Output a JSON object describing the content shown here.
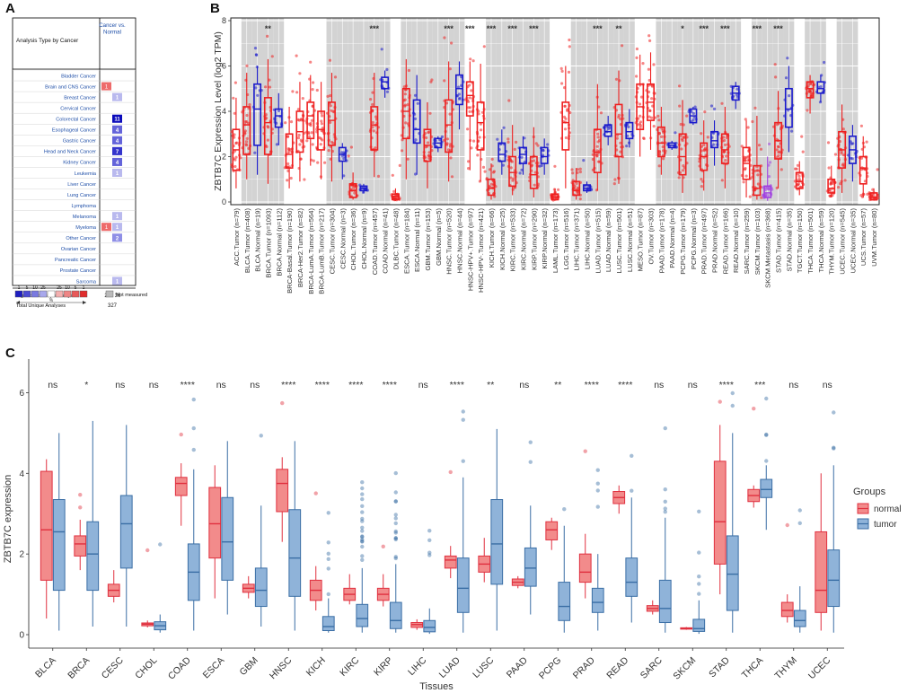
{
  "panels": {
    "a": "A",
    "b": "B",
    "c": "C"
  },
  "oncomine": {
    "header_left": "Analysis Type by Cancer",
    "header_right": "Cancer vs. Normal",
    "rows": [
      {
        "name": "Bladder Cancer",
        "red": "",
        "blue": ""
      },
      {
        "name": "Brain and CNS Cancer",
        "red": "1",
        "blue": ""
      },
      {
        "name": "Breast Cancer",
        "red": "",
        "blue": "1"
      },
      {
        "name": "Cervical Cancer",
        "red": "",
        "blue": ""
      },
      {
        "name": "Colorectal Cancer",
        "red": "",
        "blue": "11"
      },
      {
        "name": "Esophageal Cancer",
        "red": "",
        "blue": "4"
      },
      {
        "name": "Gastric Cancer",
        "red": "",
        "blue": "4"
      },
      {
        "name": "Head and Neck Cancer",
        "red": "",
        "blue": "7"
      },
      {
        "name": "Kidney Cancer",
        "red": "",
        "blue": "4"
      },
      {
        "name": "Leukemia",
        "red": "",
        "blue": "1"
      },
      {
        "name": "Liver Cancer",
        "red": "",
        "blue": ""
      },
      {
        "name": "Lung Cancer",
        "red": "",
        "blue": ""
      },
      {
        "name": "Lymphoma",
        "red": "",
        "blue": ""
      },
      {
        "name": "Melanoma",
        "red": "",
        "blue": "1"
      },
      {
        "name": "Myeloma",
        "red": "1",
        "blue": "1"
      },
      {
        "name": "Other Cancer",
        "red": "",
        "blue": "2"
      },
      {
        "name": "Ovarian Cancer",
        "red": "",
        "blue": ""
      },
      {
        "name": "Pancreatic Cancer",
        "red": "",
        "blue": ""
      },
      {
        "name": "Prostate Cancer",
        "red": "",
        "blue": ""
      },
      {
        "name": "Sarcoma",
        "red": "",
        "blue": "1"
      }
    ],
    "summary": [
      {
        "label": "Significant Unique Analyses",
        "red": "2",
        "blue": "36"
      },
      {
        "label": "Total Unique Analyses",
        "red": "327",
        "blue": ""
      }
    ],
    "legend_numbers": [
      "1",
      "5",
      "10",
      "25",
      "",
      "25",
      "10",
      "5",
      "1"
    ],
    "legend_percent": "%",
    "not_measured": "Not measured",
    "blue_colors": {
      "1": "#b9b9ee",
      "2": "#8f8fe6",
      "4": "#6464da",
      "7": "#3434cc",
      "11": "#0b0bbb"
    },
    "red_color": "#ee6b6b"
  },
  "chart_data": [
    {
      "type": "box",
      "panel": "B",
      "ylabel": "ZBTB7C Expression Level (log2 TPM)",
      "ylim": [
        0,
        8
      ],
      "yticks": [
        "0",
        "2",
        "4",
        "6",
        "8"
      ],
      "categories": [
        "ACC.Tumor (n=79)",
        "BLCA.Tumor (n=408)",
        "BLCA.Normal (n=19)",
        "BRCA.Tumor (n=1093)",
        "BRCA.Normal (n=112)",
        "BRCA-Basal.Tumor (n=190)",
        "BRCA-Her2.Tumor (n=82)",
        "BRCA-LumA.Tumor (n=564)",
        "BRCA-LumB.Tumor (n=217)",
        "CESC.Tumor (n=304)",
        "CESC.Normal (n=3)",
        "CHOL.Tumor (n=36)",
        "CHOL.Normal (n=9)",
        "COAD.Tumor (n=457)",
        "COAD.Normal (n=41)",
        "DLBC.Tumor (n=48)",
        "ESCA.Tumor (n=184)",
        "ESCA.Normal (n=11)",
        "GBM.Tumor (n=153)",
        "GBM.Normal (n=5)",
        "HNSC.Tumor (n=520)",
        "HNSC.Normal (n=44)",
        "HNSC-HPV+.Tumor (n=97)",
        "HNSC-HPV-.Tumor (n=421)",
        "KICH.Tumor (n=66)",
        "KICH.Normal (n=25)",
        "KIRC.Tumor (n=533)",
        "KIRC.Normal (n=72)",
        "KIRP.Tumor (n=290)",
        "KIRP.Normal (n=32)",
        "LAML.Tumor (n=173)",
        "LGG.Tumor (n=516)",
        "LIHC.Tumor (n=371)",
        "LIHC.Normal (n=50)",
        "LUAD.Tumor (n=515)",
        "LUAD.Normal (n=59)",
        "LUSC.Tumor (n=501)",
        "LUSC.Normal (n=51)",
        "MESO.Tumor (n=87)",
        "OV.Tumor (n=303)",
        "PAAD.Tumor (n=178)",
        "PAAD.Normal (n=4)",
        "PCPG.Tumor (n=179)",
        "PCPG.Normal (n=3)",
        "PRAD.Tumor (n=497)",
        "PRAD.Normal (n=52)",
        "READ.Tumor (n=166)",
        "READ.Normal (n=10)",
        "SARC.Tumor (n=259)",
        "SKCM.Tumor (n=103)",
        "SKCM.Metastasis (n=368)",
        "STAD.Tumor (n=415)",
        "STAD.Normal (n=35)",
        "TGCT.Tumor (n=150)",
        "THCA.Tumor (n=501)",
        "THCA.Normal (n=59)",
        "THYM.Tumor (n=120)",
        "UCEC.Tumor (n=545)",
        "UCEC.Normal (n=35)",
        "UCS.Tumor (n=57)",
        "UVM.Tumor (n=80)"
      ],
      "group": [
        "t",
        "t",
        "n",
        "t",
        "n",
        "t",
        "t",
        "t",
        "t",
        "t",
        "n",
        "t",
        "n",
        "t",
        "n",
        "t",
        "t",
        "n",
        "t",
        "n",
        "t",
        "n",
        "t",
        "t",
        "t",
        "n",
        "t",
        "n",
        "t",
        "n",
        "t",
        "t",
        "t",
        "n",
        "t",
        "n",
        "t",
        "n",
        "t",
        "t",
        "t",
        "n",
        "t",
        "n",
        "t",
        "n",
        "t",
        "n",
        "t",
        "t",
        "m",
        "t",
        "n",
        "t",
        "t",
        "n",
        "t",
        "t",
        "n",
        "t",
        "t"
      ],
      "shaded": [
        0,
        1,
        1,
        1,
        1,
        0,
        0,
        0,
        0,
        1,
        1,
        1,
        1,
        1,
        1,
        0,
        1,
        1,
        1,
        1,
        1,
        1,
        0,
        0,
        1,
        1,
        1,
        1,
        1,
        1,
        0,
        0,
        1,
        1,
        1,
        1,
        1,
        1,
        0,
        0,
        1,
        1,
        1,
        1,
        1,
        1,
        1,
        1,
        0,
        1,
        1,
        1,
        1,
        0,
        1,
        1,
        0,
        1,
        1,
        0,
        0
      ],
      "boxes": [
        [
          0.6,
          1.4,
          2.3,
          3.2,
          4.6
        ],
        [
          1.0,
          2.1,
          3.4,
          4.2,
          5.7
        ],
        [
          1.2,
          2.5,
          4.1,
          5.2,
          6.0
        ],
        [
          0.8,
          2.1,
          3.5,
          4.6,
          6.3
        ],
        [
          2.5,
          3.3,
          3.8,
          4.1,
          4.8
        ],
        [
          0.6,
          1.5,
          2.1,
          3.0,
          4.2
        ],
        [
          0.9,
          2.2,
          3.1,
          4.0,
          5.3
        ],
        [
          1.6,
          2.8,
          3.8,
          4.4,
          5.6
        ],
        [
          1.0,
          2.3,
          3.2,
          4.0,
          5.3
        ],
        [
          0.9,
          2.5,
          3.6,
          4.4,
          5.7
        ],
        [
          1.0,
          1.8,
          2.1,
          2.4,
          2.6
        ],
        [
          0.1,
          0.2,
          0.5,
          0.8,
          1.3
        ],
        [
          0.4,
          0.5,
          0.6,
          0.7,
          0.8
        ],
        [
          1.1,
          2.3,
          3.4,
          4.2,
          5.7
        ],
        [
          4.6,
          5.0,
          5.3,
          5.5,
          5.8
        ],
        [
          0.05,
          0.1,
          0.25,
          0.35,
          0.6
        ],
        [
          1.0,
          2.8,
          4.0,
          5.0,
          6.3
        ],
        [
          1.2,
          2.6,
          3.2,
          4.5,
          5.6
        ],
        [
          0.6,
          1.8,
          2.5,
          3.2,
          4.4
        ],
        [
          2.2,
          2.4,
          2.6,
          2.8,
          2.9
        ],
        [
          0.9,
          2.2,
          3.4,
          4.5,
          6.2
        ],
        [
          3.2,
          4.3,
          5.0,
          5.6,
          6.2
        ],
        [
          1.4,
          3.8,
          4.7,
          5.3,
          6.2
        ],
        [
          0.9,
          2.3,
          3.5,
          4.4,
          6.1
        ],
        [
          0.1,
          0.3,
          0.6,
          1.0,
          1.7
        ],
        [
          1.2,
          1.8,
          2.1,
          2.6,
          3.2
        ],
        [
          0.3,
          0.7,
          1.3,
          2.0,
          3.4
        ],
        [
          1.2,
          1.7,
          2.1,
          2.4,
          2.9
        ],
        [
          0.2,
          0.6,
          1.2,
          2.0,
          3.3
        ],
        [
          1.2,
          1.7,
          2.0,
          2.4,
          2.8
        ],
        [
          0.05,
          0.1,
          0.2,
          0.35,
          0.6
        ],
        [
          0.6,
          2.3,
          3.5,
          4.4,
          6.0
        ],
        [
          0.1,
          0.3,
          0.5,
          0.9,
          1.5
        ],
        [
          0.4,
          0.5,
          0.6,
          0.75,
          0.9
        ],
        [
          0.5,
          1.3,
          2.2,
          3.2,
          5.2
        ],
        [
          2.5,
          2.9,
          3.1,
          3.4,
          3.8
        ],
        [
          0.8,
          2.0,
          3.0,
          4.3,
          5.8
        ],
        [
          2.4,
          2.8,
          3.1,
          3.5,
          4.1
        ],
        [
          2.0,
          3.2,
          4.2,
          5.2,
          6.5
        ],
        [
          2.3,
          3.6,
          4.4,
          5.2,
          6.6
        ],
        [
          1.2,
          2.0,
          2.6,
          3.3,
          4.2
        ],
        [
          2.3,
          2.4,
          2.5,
          2.6,
          2.7
        ],
        [
          0.4,
          1.2,
          2.0,
          3.0,
          4.5
        ],
        [
          3.4,
          3.5,
          3.8,
          4.1,
          4.2
        ],
        [
          0.5,
          1.4,
          2.0,
          2.6,
          3.6
        ],
        [
          1.6,
          2.4,
          2.7,
          3.1,
          3.6
        ],
        [
          0.6,
          1.7,
          2.3,
          3.0,
          4.2
        ],
        [
          4.1,
          4.5,
          4.8,
          5.1,
          5.3
        ],
        [
          0.2,
          1.0,
          1.7,
          2.4,
          3.6
        ],
        [
          0.1,
          0.3,
          0.6,
          1.6,
          3.8
        ],
        [
          0.05,
          0.2,
          0.4,
          0.7,
          2.0
        ],
        [
          0.6,
          1.9,
          2.7,
          3.5,
          4.9
        ],
        [
          2.2,
          3.3,
          4.1,
          5.0,
          6.0
        ],
        [
          0.3,
          0.6,
          0.9,
          1.3,
          1.8
        ],
        [
          3.9,
          4.6,
          5.0,
          5.3,
          5.6
        ],
        [
          4.4,
          4.8,
          5.0,
          5.3,
          5.6
        ],
        [
          0.2,
          0.4,
          0.6,
          1.0,
          1.6
        ],
        [
          0.4,
          1.5,
          2.3,
          3.1,
          4.3
        ],
        [
          0.9,
          1.7,
          2.3,
          2.9,
          3.4
        ],
        [
          0.2,
          0.8,
          1.5,
          2.0,
          2.9
        ],
        [
          0.05,
          0.1,
          0.2,
          0.4,
          0.6
        ]
      ],
      "significance": [
        {
          "after": 3,
          "label": "**"
        },
        {
          "after": 13,
          "label": "***"
        },
        {
          "after": 20,
          "label": "***"
        },
        {
          "after": 22,
          "label": "***"
        },
        {
          "after": 24,
          "label": "***"
        },
        {
          "after": 26,
          "label": "***"
        },
        {
          "after": 28,
          "label": "***"
        },
        {
          "after": 34,
          "label": "***"
        },
        {
          "after": 36,
          "label": "**"
        },
        {
          "after": 42,
          "label": "*"
        },
        {
          "after": 44,
          "label": "***"
        },
        {
          "after": 46,
          "label": "***"
        },
        {
          "after": 49,
          "label": "***"
        },
        {
          "after": 51,
          "label": "***"
        }
      ],
      "colors": {
        "tumor": "#ee2020",
        "normal": "#1a1acc",
        "metastasis": "#a040e0",
        "shade": "#d3d3d3"
      }
    },
    {
      "type": "box",
      "panel": "C",
      "ylabel": "ZBTB7C expression",
      "xlabel": "Tissues",
      "ylim": [
        0,
        6.5
      ],
      "yticks": [
        "0",
        "2",
        "4",
        "6"
      ],
      "categories": [
        "BLCA",
        "BRCA",
        "CESC",
        "CHOL",
        "COAD",
        "ESCA",
        "GBM",
        "HNSC",
        "KICH",
        "KIRC",
        "KIRP",
        "LIHC",
        "LUAD",
        "LUSC",
        "PAAD",
        "PCPG",
        "PRAD",
        "READ",
        "SARC",
        "SKCM",
        "STAD",
        "THCA",
        "THYM",
        "UCEC"
      ],
      "significance": [
        "ns",
        "*",
        "ns",
        "ns",
        "****",
        "ns",
        "ns",
        "****",
        "****",
        "****",
        "****",
        "ns",
        "****",
        "**",
        "ns",
        "**",
        "****",
        "****",
        "ns",
        "ns",
        "****",
        "***",
        "ns",
        "ns"
      ],
      "normal": [
        [
          0.4,
          1.35,
          2.6,
          4.05,
          4.35
        ],
        [
          1.6,
          1.95,
          2.25,
          2.45,
          2.85
        ],
        [
          0.8,
          0.95,
          1.1,
          1.25,
          1.6
        ],
        [
          0.18,
          0.22,
          0.26,
          0.29,
          0.35
        ],
        [
          2.7,
          3.45,
          3.75,
          3.9,
          4.25
        ],
        [
          0.9,
          1.9,
          2.75,
          3.65,
          4.2
        ],
        [
          0.9,
          1.05,
          1.15,
          1.25,
          1.45
        ],
        [
          2.3,
          3.05,
          3.75,
          4.1,
          4.4
        ],
        [
          0.6,
          0.85,
          1.1,
          1.35,
          1.7
        ],
        [
          0.75,
          0.85,
          1.0,
          1.15,
          1.5
        ],
        [
          0.7,
          0.85,
          1.0,
          1.15,
          1.5
        ],
        [
          0.12,
          0.18,
          0.25,
          0.3,
          0.38
        ],
        [
          1.4,
          1.65,
          1.85,
          1.95,
          2.2
        ],
        [
          1.3,
          1.55,
          1.75,
          1.95,
          2.4
        ],
        [
          1.15,
          1.22,
          1.3,
          1.38,
          1.45
        ],
        [
          2.1,
          2.35,
          2.6,
          2.8,
          2.9
        ],
        [
          0.9,
          1.3,
          1.55,
          2.0,
          2.5
        ],
        [
          3.0,
          3.25,
          3.4,
          3.55,
          3.7
        ],
        [
          0.5,
          0.58,
          0.65,
          0.72,
          0.85
        ],
        [
          0.12,
          0.14,
          0.16,
          0.17,
          0.19
        ],
        [
          1.0,
          1.75,
          2.8,
          4.3,
          5.2
        ],
        [
          3.15,
          3.3,
          3.45,
          3.6,
          3.7
        ],
        [
          0.3,
          0.45,
          0.6,
          0.8,
          1.0
        ],
        [
          0.1,
          0.55,
          1.1,
          2.55,
          4.0
        ]
      ],
      "tumor": [
        [
          0.1,
          1.1,
          2.55,
          3.35,
          5.0
        ],
        [
          0.2,
          1.1,
          2.0,
          2.8,
          5.3
        ],
        [
          0.2,
          1.65,
          2.75,
          3.45,
          5.2
        ],
        [
          0.05,
          0.12,
          0.22,
          0.32,
          0.5
        ],
        [
          0.1,
          0.85,
          1.55,
          2.25,
          4.1
        ],
        [
          0.5,
          1.35,
          2.3,
          3.4,
          4.8
        ],
        [
          0.2,
          0.7,
          1.1,
          1.65,
          3.2
        ],
        [
          0.1,
          0.95,
          1.9,
          3.1,
          4.8
        ],
        [
          0.05,
          0.1,
          0.2,
          0.45,
          0.9
        ],
        [
          0.05,
          0.2,
          0.4,
          0.75,
          1.65
        ],
        [
          0.05,
          0.15,
          0.35,
          0.8,
          1.75
        ],
        [
          0.02,
          0.07,
          0.18,
          0.35,
          0.65
        ],
        [
          0.05,
          0.55,
          1.15,
          1.9,
          3.9
        ],
        [
          0.1,
          1.25,
          2.25,
          3.35,
          5.1
        ],
        [
          0.5,
          1.2,
          1.65,
          2.15,
          3.2
        ],
        [
          0.05,
          0.35,
          0.7,
          1.3,
          2.7
        ],
        [
          0.1,
          0.55,
          0.8,
          1.15,
          2.0
        ],
        [
          0.3,
          0.95,
          1.3,
          1.9,
          3.4
        ],
        [
          0.05,
          0.3,
          0.65,
          1.35,
          2.9
        ],
        [
          0.02,
          0.08,
          0.15,
          0.38,
          0.85
        ],
        [
          0.05,
          0.6,
          1.5,
          2.45,
          5.0
        ],
        [
          2.6,
          3.4,
          3.6,
          3.85,
          4.2
        ],
        [
          0.05,
          0.2,
          0.35,
          0.6,
          1.2
        ],
        [
          0.05,
          0.7,
          1.35,
          2.1,
          4.2
        ]
      ],
      "legend_title": "Groups",
      "legend_labels": [
        "normal",
        "tumor"
      ],
      "colors": {
        "normal_fill": "#f28b8b",
        "normal_line": "#e0303f",
        "tumor_fill": "#8fb3d9",
        "tumor_line": "#3a6ea5"
      }
    }
  ]
}
